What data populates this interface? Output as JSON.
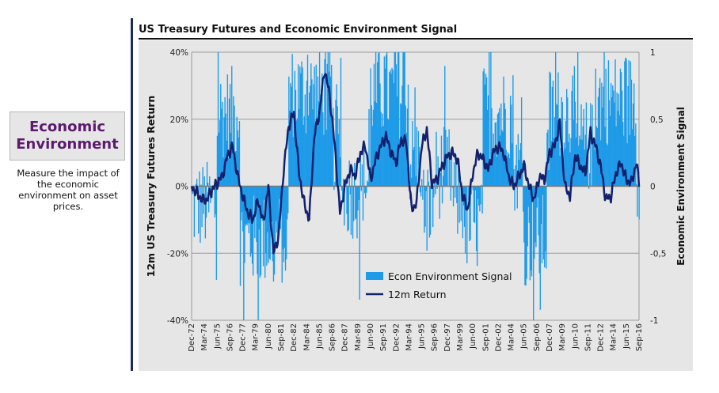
{
  "sidebar": {
    "title": "Economic\nEnvironment",
    "description": "Measure the impact of the economic environment on asset prices."
  },
  "colors": {
    "signal": "#1e9be8",
    "return": "#13206e",
    "plot_bg": "#e6e6e6",
    "accent_text": "#5b1a6e"
  },
  "chart_data": {
    "type": "bar+line",
    "title": "US Treasury Futures and Economic Environment Signal",
    "ylabel_left": "12m US Treasury Futures Return",
    "ylabel_right": "Economic Environment Signal",
    "ylim_left": [
      -0.4,
      0.4
    ],
    "ylim_right": [
      -1,
      1
    ],
    "yticks_left": [
      "40%",
      "20%",
      "0%",
      "-20%",
      "-40%"
    ],
    "yticks_right": [
      "1",
      "0,5",
      "0",
      "-0,5",
      "-1"
    ],
    "x_start": "Dec-72",
    "x_end": "Sep-16",
    "xticks": [
      "Dec-72",
      "Mar-74",
      "Jun-75",
      "Sep-76",
      "Dec-77",
      "Mar-79",
      "Jun-80",
      "Sep-81",
      "Dec-82",
      "Mar-84",
      "Jun-85",
      "Sep-86",
      "Dec-87",
      "Mar-89",
      "Jun-90",
      "Sep-91",
      "Dec-92",
      "Mar-94",
      "Jun-95",
      "Sep-96",
      "Dec-97",
      "Mar-99",
      "Jun-00",
      "Sep-01",
      "Dec-02",
      "Mar-04",
      "Jun-05",
      "Sep-06",
      "Dec-07",
      "Mar-09",
      "Jun-10",
      "Sep-11",
      "Dec-12",
      "Mar-14",
      "Jun-15",
      "Sep-16"
    ],
    "legend": [
      "Econ Environment Signal",
      "12m Return"
    ],
    "series": [
      {
        "name": "12m Return",
        "unit": "fraction",
        "knots": [
          [
            "Dec-72",
            0.0
          ],
          [
            "Jun-73",
            -0.02
          ],
          [
            "Dec-73",
            -0.04
          ],
          [
            "Jun-74",
            -0.04
          ],
          [
            "Dec-74",
            -0.01
          ],
          [
            "Jun-75",
            0.01
          ],
          [
            "Dec-75",
            0.03
          ],
          [
            "Jun-76",
            0.09
          ],
          [
            "Dec-76",
            0.12
          ],
          [
            "Jun-77",
            0.03
          ],
          [
            "Dec-77",
            -0.03
          ],
          [
            "Jun-78",
            -0.08
          ],
          [
            "Dec-78",
            -0.1
          ],
          [
            "Jun-79",
            -0.04
          ],
          [
            "Dec-79",
            -0.11
          ],
          [
            "Jun-80",
            0.0
          ],
          [
            "Dec-80",
            -0.2
          ],
          [
            "Jun-81",
            -0.15
          ],
          [
            "Dec-81",
            0.05
          ],
          [
            "Jun-82",
            0.18
          ],
          [
            "Dec-82",
            0.22
          ],
          [
            "Jun-83",
            0.04
          ],
          [
            "Dec-83",
            -0.05
          ],
          [
            "Jun-84",
            -0.1
          ],
          [
            "Dec-84",
            0.15
          ],
          [
            "Jun-85",
            0.22
          ],
          [
            "Dec-85",
            0.35
          ],
          [
            "Jun-86",
            0.27
          ],
          [
            "Dec-86",
            0.12
          ],
          [
            "Jun-87",
            -0.08
          ],
          [
            "Dec-87",
            0.0
          ],
          [
            "Jun-88",
            0.05
          ],
          [
            "Dec-88",
            0.03
          ],
          [
            "Jun-89",
            0.1
          ],
          [
            "Dec-89",
            0.12
          ],
          [
            "Jun-90",
            0.02
          ],
          [
            "Dec-90",
            0.08
          ],
          [
            "Jun-91",
            0.12
          ],
          [
            "Dec-91",
            0.15
          ],
          [
            "Jun-92",
            0.1
          ],
          [
            "Dec-92",
            0.07
          ],
          [
            "Jun-93",
            0.14
          ],
          [
            "Dec-93",
            0.13
          ],
          [
            "Jun-94",
            -0.07
          ],
          [
            "Dec-94",
            -0.05
          ],
          [
            "Jun-95",
            0.12
          ],
          [
            "Dec-95",
            0.17
          ],
          [
            "Jun-96",
            0.01
          ],
          [
            "Dec-96",
            0.02
          ],
          [
            "Jun-97",
            0.06
          ],
          [
            "Dec-97",
            0.09
          ],
          [
            "Jun-98",
            0.1
          ],
          [
            "Dec-98",
            0.08
          ],
          [
            "Jun-99",
            -0.03
          ],
          [
            "Dec-99",
            -0.07
          ],
          [
            "Jun-00",
            0.04
          ],
          [
            "Dec-00",
            0.1
          ],
          [
            "Jun-01",
            0.08
          ],
          [
            "Dec-01",
            0.05
          ],
          [
            "Jun-02",
            0.1
          ],
          [
            "Dec-02",
            0.12
          ],
          [
            "Jun-03",
            0.1
          ],
          [
            "Dec-03",
            0.03
          ],
          [
            "Jun-04",
            0.0
          ],
          [
            "Dec-04",
            0.03
          ],
          [
            "Jun-05",
            0.06
          ],
          [
            "Dec-05",
            0.0
          ],
          [
            "Jun-06",
            -0.04
          ],
          [
            "Dec-06",
            0.03
          ],
          [
            "Jun-07",
            0.02
          ],
          [
            "Dec-07",
            0.1
          ],
          [
            "Jun-08",
            0.12
          ],
          [
            "Dec-08",
            0.19
          ],
          [
            "Jun-09",
            0.0
          ],
          [
            "Dec-09",
            -0.03
          ],
          [
            "Jun-10",
            0.09
          ],
          [
            "Dec-10",
            0.06
          ],
          [
            "Jun-11",
            0.04
          ],
          [
            "Dec-11",
            0.16
          ],
          [
            "Jun-12",
            0.12
          ],
          [
            "Dec-12",
            0.06
          ],
          [
            "Jun-13",
            -0.04
          ],
          [
            "Dec-13",
            -0.03
          ],
          [
            "Jun-14",
            0.04
          ],
          [
            "Dec-14",
            0.07
          ],
          [
            "Jun-15",
            0.02
          ],
          [
            "Dec-15",
            0.01
          ],
          [
            "Jun-16",
            0.07
          ],
          [
            "Sep-16",
            0.01
          ]
        ]
      },
      {
        "name": "Econ Environment Signal",
        "unit": "signal",
        "regimes": [
          [
            "Dec-72",
            -0.15
          ],
          [
            "Jun-75",
            0.55
          ],
          [
            "Sep-77",
            -0.4
          ],
          [
            "Jun-82",
            0.7
          ],
          [
            "Sep-86",
            0.3
          ],
          [
            "Sep-87",
            -0.05
          ],
          [
            "Sep-89",
            0.05
          ],
          [
            "Jun-90",
            0.7
          ],
          [
            "Mar-94",
            0.2
          ],
          [
            "Jun-95",
            -0.15
          ],
          [
            "Sep-96",
            0.1
          ],
          [
            "Jun-98",
            -0.1
          ],
          [
            "Sep-99",
            -0.3
          ],
          [
            "Jun-01",
            0.55
          ],
          [
            "Jun-04",
            0.15
          ],
          [
            "Jun-05",
            -0.4
          ],
          [
            "Sep-07",
            0.15
          ],
          [
            "Dec-07",
            0.55
          ],
          [
            "Jun-10",
            0.3
          ],
          [
            "Jun-12",
            0.65
          ],
          [
            "Jun-16",
            0.1
          ]
        ]
      }
    ]
  }
}
